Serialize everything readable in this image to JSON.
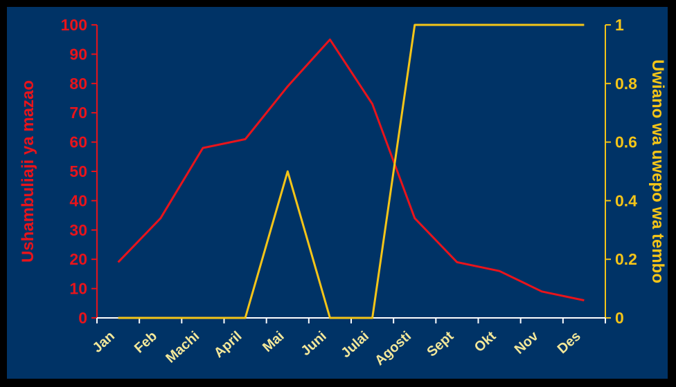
{
  "colors": {
    "background": "#003366",
    "left_series": "#E8141B",
    "right_series": "#F5C518",
    "x_axis": "#FFFFFF",
    "x_labels": "#F3E89A"
  },
  "chart_data": {
    "type": "line",
    "categories": [
      "Jan",
      "Feb",
      "Machi",
      "April",
      "Mai",
      "Juni",
      "Julai",
      "Agosti",
      "Sept",
      "Okt",
      "Nov",
      "Des"
    ],
    "y_left": {
      "label": "Ushambuliaji ya mazao",
      "range": [
        0,
        100
      ],
      "ticks": [
        0,
        10,
        20,
        30,
        40,
        50,
        60,
        70,
        80,
        90,
        100
      ],
      "tick_labels": [
        "0",
        "10",
        "20",
        "30",
        "40",
        "50",
        "60",
        "70",
        "80",
        "90",
        "100"
      ]
    },
    "y_right": {
      "label": "Uwiano wa uwepo wa tembo",
      "range": [
        0,
        1
      ],
      "ticks": [
        0,
        0.2,
        0.4,
        0.6,
        0.8,
        1
      ],
      "tick_labels": [
        "0",
        "0.2",
        "0.4",
        "0.6",
        "0.8",
        "1"
      ]
    },
    "series": [
      {
        "axis": "left",
        "values": [
          19,
          34,
          58,
          61,
          79,
          95,
          73,
          34,
          19,
          16,
          9,
          6
        ]
      },
      {
        "axis": "right",
        "values": [
          0,
          0,
          0,
          0,
          0.5,
          0,
          0,
          1,
          1,
          1,
          1,
          1
        ]
      }
    ],
    "grid": false,
    "legend": "none"
  }
}
